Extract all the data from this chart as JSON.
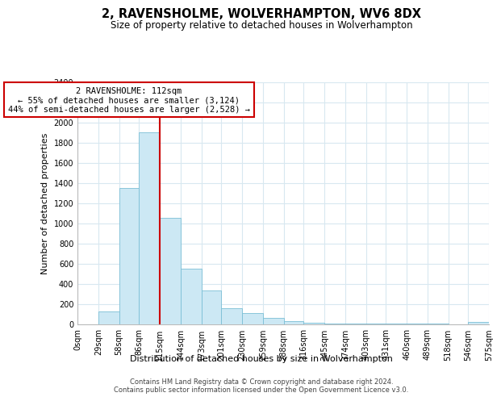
{
  "title": "2, RAVENSHOLME, WOLVERHAMPTON, WV6 8DX",
  "subtitle": "Size of property relative to detached houses in Wolverhampton",
  "xlabel": "Distribution of detached houses by size in Wolverhampton",
  "ylabel": "Number of detached properties",
  "bar_values": [
    0,
    125,
    1350,
    1900,
    1050,
    550,
    335,
    160,
    110,
    60,
    30,
    10,
    5,
    3,
    2,
    1,
    1,
    1,
    0,
    20
  ],
  "bin_edges": [
    0,
    29,
    58,
    86,
    115,
    144,
    173,
    201,
    230,
    259,
    288,
    316,
    345,
    374,
    403,
    431,
    460,
    489,
    518,
    546,
    575
  ],
  "xtick_labels": [
    "0sqm",
    "29sqm",
    "58sqm",
    "86sqm",
    "115sqm",
    "144sqm",
    "173sqm",
    "201sqm",
    "230sqm",
    "259sqm",
    "288sqm",
    "316sqm",
    "345sqm",
    "374sqm",
    "403sqm",
    "431sqm",
    "460sqm",
    "489sqm",
    "518sqm",
    "546sqm",
    "575sqm"
  ],
  "bar_color": "#cce8f4",
  "bar_edge_color": "#7bbfd6",
  "vline_x": 115,
  "vline_color": "#cc0000",
  "annotation_title": "2 RAVENSHOLME: 112sqm",
  "annotation_line1": "← 55% of detached houses are smaller (3,124)",
  "annotation_line2": "44% of semi-detached houses are larger (2,528) →",
  "annotation_box_color": "#ffffff",
  "annotation_box_edge": "#cc0000",
  "ylim": [
    0,
    2400
  ],
  "ytick_vals": [
    0,
    200,
    400,
    600,
    800,
    1000,
    1200,
    1400,
    1600,
    1800,
    2000,
    2200,
    2400
  ],
  "footer1": "Contains HM Land Registry data © Crown copyright and database right 2024.",
  "footer2": "Contains public sector information licensed under the Open Government Licence v3.0.",
  "title_fontsize": 10.5,
  "subtitle_fontsize": 8.5,
  "axis_label_fontsize": 8,
  "tick_fontsize": 7,
  "annotation_fontsize": 7.5,
  "footer_fontsize": 6,
  "bg_color": "#ffffff",
  "grid_color": "#d8e8f0"
}
